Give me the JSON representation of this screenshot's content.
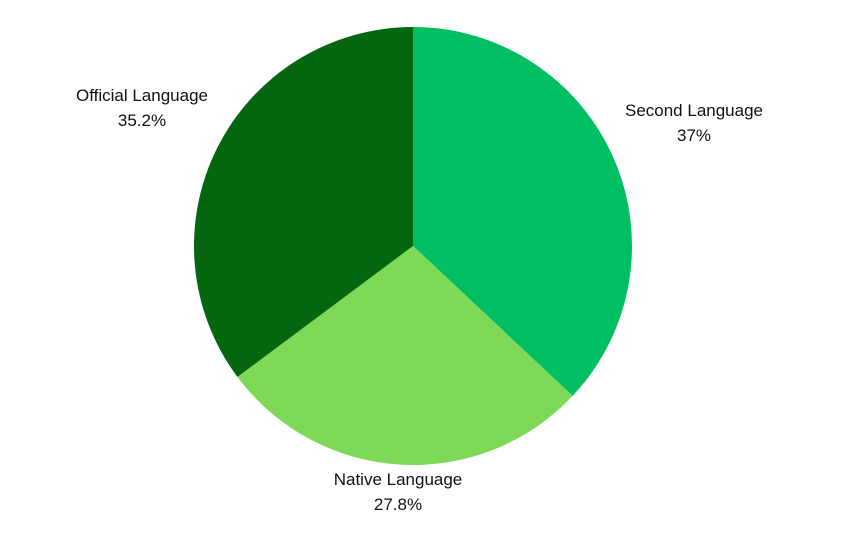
{
  "chart_data": {
    "type": "pie",
    "title": "",
    "legend": "none",
    "slices": [
      {
        "label": "Second Language",
        "value": 37.0,
        "display": "37%",
        "color": "#00bf63"
      },
      {
        "label": "Native Language",
        "value": 27.8,
        "display": "27.8%",
        "color": "#7ed957"
      },
      {
        "label": "Official Language",
        "value": 35.2,
        "display": "35.2%",
        "color": "#056610"
      }
    ]
  }
}
